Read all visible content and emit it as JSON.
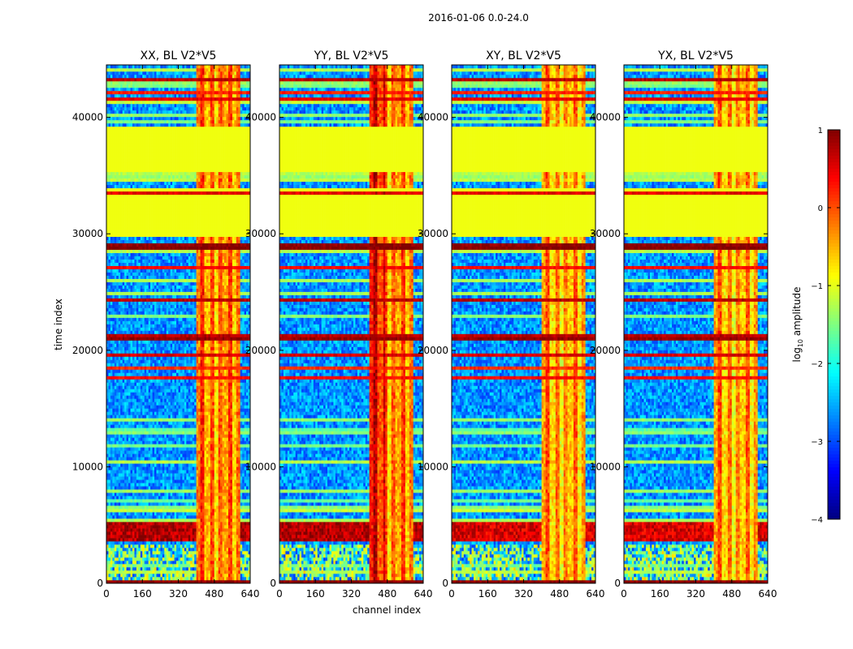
{
  "chart_data": {
    "type": "heatmap",
    "suptitle": "2016-01-06 0.0-24.0",
    "xlabel": "channel index",
    "ylabel": "time index",
    "xlim": [
      0,
      640
    ],
    "ylim": [
      0,
      44500
    ],
    "xticks": [
      0,
      160,
      320,
      480,
      640
    ],
    "yticks": [
      0,
      10000,
      20000,
      30000,
      40000
    ],
    "colorbar": {
      "label": "log10 amplitude",
      "label_main": "log",
      "label_sub": "10",
      "label_suffix": " amplitude",
      "range": [
        -4,
        1
      ],
      "ticks": [
        1,
        0,
        -1,
        -2,
        -3,
        -4
      ],
      "tick_labels": [
        "1",
        "0",
        "−1",
        "−2",
        "−3",
        "−4"
      ],
      "colormap": "jet"
    },
    "panels": [
      {
        "title": "XX, BL V2*V5",
        "pol": "XX"
      },
      {
        "title": "YY, BL V2*V5",
        "pol": "YY"
      },
      {
        "title": "XY, BL V2*V5",
        "pol": "XY"
      },
      {
        "title": "YX, BL V2*V5",
        "pol": "YX"
      }
    ],
    "masked_time_ranges": [
      [
        29800,
        33400
      ],
      [
        35300,
        39200
      ],
      [
        33600,
        34000
      ]
    ],
    "flagged_value": -0.95,
    "rfi_channel_range": [
      400,
      600
    ],
    "strong_time_range": [
      3700,
      5200
    ]
  }
}
